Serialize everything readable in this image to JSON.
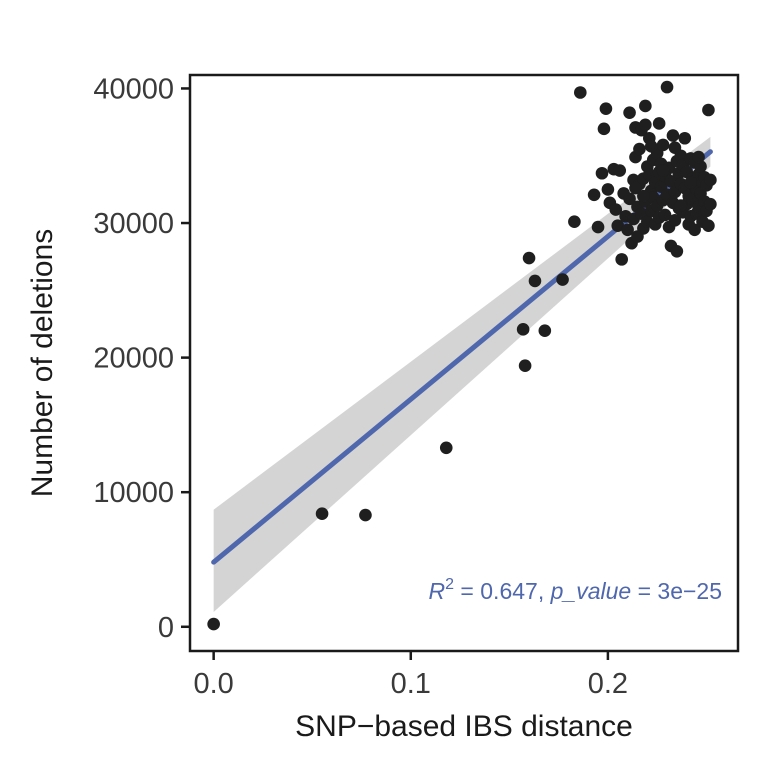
{
  "chart_data": {
    "type": "scatter",
    "xlabel": "SNP−based IBS distance",
    "ylabel": "Number of deletions",
    "xlim": [
      -0.012,
      0.266
    ],
    "ylim": [
      -1800,
      41000
    ],
    "x_ticks": [
      0.0,
      0.1,
      0.2
    ],
    "x_tick_labels": [
      "0.0",
      "0.1",
      "0.2"
    ],
    "y_ticks": [
      0,
      10000,
      20000,
      30000,
      40000
    ],
    "y_tick_labels": [
      "0",
      "10000",
      "20000",
      "30000",
      "40000"
    ],
    "grid": false,
    "point_color": "#1f1f1f",
    "fit_color": "#4f67ad",
    "band_color": "#cfcfcf",
    "fit_line": {
      "x": [
        0.0,
        0.252
      ],
      "y": [
        4800,
        35300
      ],
      "ci_lower": [
        1100,
        34200
      ],
      "ci_upper": [
        8700,
        36400
      ]
    },
    "annotation": {
      "r2_label": "R",
      "r2_sup": "2",
      "r2_value": " = 0.647, ",
      "p_label": "p_value",
      "p_value": " = 3e−25"
    },
    "points": [
      [
        0.0,
        200
      ],
      [
        0.055,
        8400
      ],
      [
        0.077,
        8300
      ],
      [
        0.118,
        13300
      ],
      [
        0.157,
        22100
      ],
      [
        0.158,
        19400
      ],
      [
        0.16,
        27400
      ],
      [
        0.163,
        25700
      ],
      [
        0.168,
        22000
      ],
      [
        0.177,
        25800
      ],
      [
        0.183,
        30100
      ],
      [
        0.186,
        39700
      ],
      [
        0.193,
        32100
      ],
      [
        0.195,
        29700
      ],
      [
        0.197,
        33700
      ],
      [
        0.198,
        37000
      ],
      [
        0.199,
        38500
      ],
      [
        0.2,
        32500
      ],
      [
        0.201,
        31500
      ],
      [
        0.203,
        34000
      ],
      [
        0.204,
        31000
      ],
      [
        0.205,
        29800
      ],
      [
        0.206,
        33900
      ],
      [
        0.207,
        27300
      ],
      [
        0.208,
        32200
      ],
      [
        0.209,
        30500
      ],
      [
        0.21,
        29500
      ],
      [
        0.211,
        38200
      ],
      [
        0.211,
        31800
      ],
      [
        0.212,
        28500
      ],
      [
        0.213,
        33200
      ],
      [
        0.213,
        30300
      ],
      [
        0.214,
        34900
      ],
      [
        0.214,
        37100
      ],
      [
        0.215,
        29000
      ],
      [
        0.215,
        31200
      ],
      [
        0.216,
        32900
      ],
      [
        0.216,
        35500
      ],
      [
        0.217,
        30700
      ],
      [
        0.217,
        36900
      ],
      [
        0.218,
        33300
      ],
      [
        0.218,
        29600
      ],
      [
        0.219,
        38700
      ],
      [
        0.219,
        31600
      ],
      [
        0.22,
        34200
      ],
      [
        0.22,
        30100
      ],
      [
        0.221,
        33600
      ],
      [
        0.221,
        36300
      ],
      [
        0.222,
        32400
      ],
      [
        0.222,
        30900
      ],
      [
        0.223,
        34700
      ],
      [
        0.223,
        31900
      ],
      [
        0.224,
        33000
      ],
      [
        0.224,
        29900
      ],
      [
        0.225,
        35200
      ],
      [
        0.225,
        31300
      ],
      [
        0.226,
        33800
      ],
      [
        0.226,
        30400
      ],
      [
        0.227,
        32700
      ],
      [
        0.227,
        34400
      ],
      [
        0.228,
        31700
      ],
      [
        0.228,
        35800
      ],
      [
        0.229,
        30600
      ],
      [
        0.229,
        33500
      ],
      [
        0.23,
        32100
      ],
      [
        0.23,
        40100
      ],
      [
        0.231,
        34100
      ],
      [
        0.231,
        29700
      ],
      [
        0.232,
        33100
      ],
      [
        0.232,
        28300
      ],
      [
        0.233,
        31500
      ],
      [
        0.233,
        36500
      ],
      [
        0.234,
        32300
      ],
      [
        0.234,
        30200
      ],
      [
        0.235,
        34600
      ],
      [
        0.235,
        27900
      ],
      [
        0.236,
        33700
      ],
      [
        0.236,
        31100
      ],
      [
        0.237,
        32900
      ],
      [
        0.237,
        35000
      ],
      [
        0.238,
        30800
      ],
      [
        0.238,
        34300
      ],
      [
        0.239,
        32600
      ],
      [
        0.239,
        36300
      ],
      [
        0.24,
        31400
      ],
      [
        0.24,
        33800
      ],
      [
        0.241,
        29900
      ],
      [
        0.241,
        32000
      ],
      [
        0.242,
        34800
      ],
      [
        0.242,
        30500
      ],
      [
        0.243,
        33300
      ],
      [
        0.243,
        31800
      ],
      [
        0.244,
        29500
      ],
      [
        0.244,
        34500
      ],
      [
        0.245,
        32500
      ],
      [
        0.245,
        30700
      ],
      [
        0.246,
        33600
      ],
      [
        0.246,
        31200
      ],
      [
        0.247,
        34200
      ],
      [
        0.247,
        32200
      ],
      [
        0.248,
        30100
      ],
      [
        0.248,
        33100
      ],
      [
        0.249,
        31600
      ],
      [
        0.249,
        33400
      ],
      [
        0.25,
        32800
      ],
      [
        0.25,
        30900
      ],
      [
        0.251,
        29800
      ],
      [
        0.251,
        38400
      ],
      [
        0.252,
        33200
      ],
      [
        0.252,
        31400
      ],
      [
        0.226,
        37400
      ],
      [
        0.222,
        35700
      ],
      [
        0.219,
        37300
      ],
      [
        0.234,
        35600
      ],
      [
        0.214,
        32600
      ],
      [
        0.228,
        33900
      ],
      [
        0.242,
        33000
      ],
      [
        0.237,
        31300
      ],
      [
        0.218,
        32000
      ],
      [
        0.246,
        34900
      ]
    ]
  }
}
